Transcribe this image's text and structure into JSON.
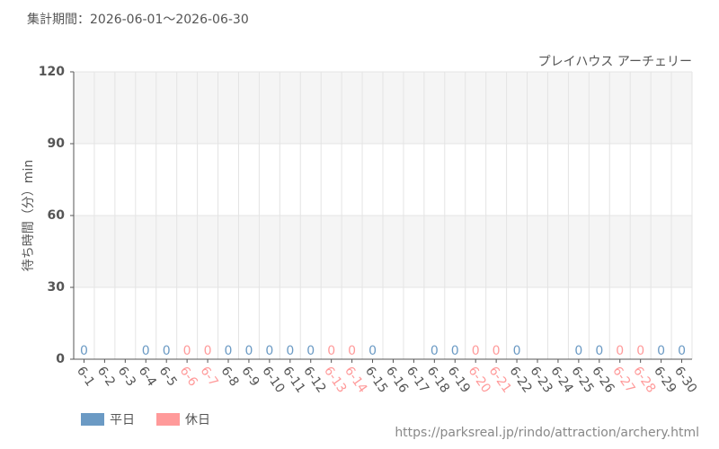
{
  "chart_data": {
    "type": "bar",
    "title": "集計期間：2026-06-01～2026-06-30",
    "subtitle": "プレイハウス アーチェリー",
    "y_label": "待ち時間（分）min",
    "source": "https://parksreal.jp/rindo/attraction/archery.html",
    "categories": [
      "6-1",
      "6-2",
      "6-3",
      "6-4",
      "6-5",
      "6-6",
      "6-7",
      "6-8",
      "6-9",
      "6-10",
      "6-11",
      "6-12",
      "6-13",
      "6-14",
      "6-15",
      "6-16",
      "6-17",
      "6-18",
      "6-19",
      "6-20",
      "6-21",
      "6-22",
      "6-23",
      "6-24",
      "6-25",
      "6-26",
      "6-27",
      "6-28",
      "6-29",
      "6-30"
    ],
    "series": [
      {
        "name": "平日",
        "color": "#6b9ac4",
        "values": [
          0,
          null,
          null,
          0,
          0,
          null,
          null,
          0,
          0,
          0,
          0,
          0,
          null,
          null,
          0,
          null,
          null,
          0,
          0,
          null,
          null,
          0,
          null,
          null,
          0,
          0,
          null,
          null,
          0,
          0
        ]
      },
      {
        "name": "休日",
        "color": "#ff9a9a",
        "values": [
          null,
          null,
          null,
          null,
          null,
          0,
          0,
          null,
          null,
          null,
          null,
          null,
          0,
          0,
          null,
          null,
          null,
          null,
          null,
          0,
          0,
          null,
          null,
          null,
          null,
          null,
          0,
          0,
          null,
          null
        ]
      }
    ],
    "ylim": [
      0,
      120
    ],
    "yticks": [
      0,
      30,
      60,
      90,
      120
    ],
    "grid": true
  }
}
